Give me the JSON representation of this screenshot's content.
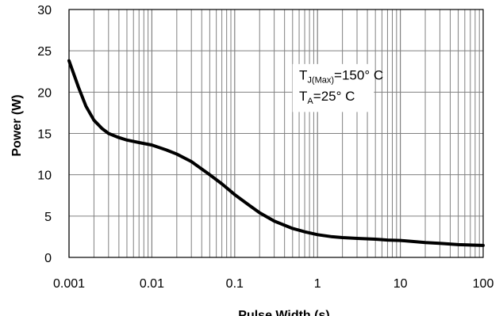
{
  "chart_data": {
    "type": "line",
    "title": "",
    "xlabel": "Pulse Width (s)",
    "ylabel": "Power (W)",
    "x_scale": "log",
    "xlim": [
      0.001,
      100
    ],
    "ylim": [
      0,
      30
    ],
    "x_ticks": [
      "0.001",
      "0.01",
      "0.1",
      "1",
      "10",
      "100"
    ],
    "y_ticks": [
      "0",
      "5",
      "10",
      "15",
      "20",
      "25",
      "30"
    ],
    "grid": "vertical log minor + horizontal major",
    "annotation": {
      "line1_main": "T",
      "line1_sub": "J(Max)",
      "line1_rest": "=150° C",
      "line2_main": "T",
      "line2_sub": "A",
      "line2_rest": "=25° C"
    },
    "series": [
      {
        "color": "#000000",
        "x": [
          0.001,
          0.0013,
          0.0016,
          0.002,
          0.0025,
          0.003,
          0.004,
          0.005,
          0.007,
          0.01,
          0.015,
          0.02,
          0.03,
          0.05,
          0.07,
          0.1,
          0.15,
          0.2,
          0.3,
          0.5,
          0.7,
          1,
          1.5,
          2,
          3,
          5,
          7,
          10,
          15,
          20,
          30,
          50,
          70,
          100
        ],
        "y": [
          23.8,
          20.6,
          18.3,
          16.6,
          15.6,
          15.0,
          14.5,
          14.2,
          13.9,
          13.6,
          13.0,
          12.5,
          11.6,
          10.0,
          8.9,
          7.6,
          6.3,
          5.4,
          4.4,
          3.5,
          3.1,
          2.75,
          2.5,
          2.4,
          2.3,
          2.2,
          2.1,
          2.05,
          1.9,
          1.8,
          1.7,
          1.55,
          1.5,
          1.45
        ]
      }
    ]
  }
}
